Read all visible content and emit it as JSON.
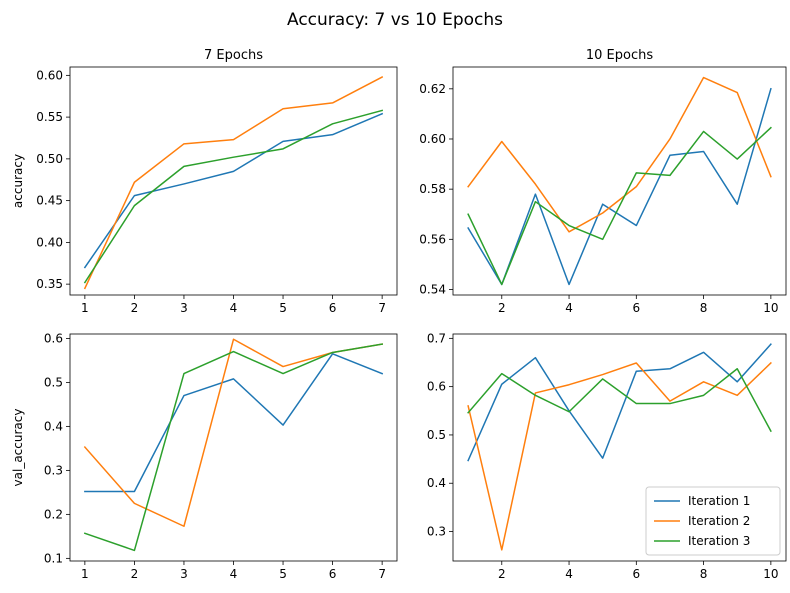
{
  "suptitle": "Accuracy: 7 vs 10 Epochs",
  "series_colors": [
    "#1f77b4",
    "#ff7f0e",
    "#2ca02c"
  ],
  "chart_data": [
    {
      "type": "line",
      "title": "7 Epochs",
      "xlabel": "",
      "ylabel": "accuracy",
      "x": [
        1,
        2,
        3,
        4,
        5,
        6,
        7
      ],
      "xticks": [
        1,
        2,
        3,
        4,
        5,
        6,
        7
      ],
      "ylim": [
        0.337,
        0.61
      ],
      "yticks": [
        0.35,
        0.4,
        0.45,
        0.5,
        0.55,
        0.6
      ],
      "ytick_labels": [
        "0.35",
        "0.40",
        "0.45",
        "0.50",
        "0.55",
        "0.60"
      ],
      "series": [
        {
          "name": "Iteration 1",
          "values": [
            0.37,
            0.456,
            0.47,
            0.485,
            0.521,
            0.529,
            0.554
          ]
        },
        {
          "name": "Iteration 2",
          "values": [
            0.345,
            0.472,
            0.518,
            0.523,
            0.56,
            0.567,
            0.598
          ]
        },
        {
          "name": "Iteration 3",
          "values": [
            0.352,
            0.444,
            0.491,
            0.502,
            0.512,
            0.542,
            0.558
          ]
        }
      ]
    },
    {
      "type": "line",
      "title": "10 Epochs",
      "xlabel": "",
      "ylabel": "",
      "x": [
        1,
        2,
        3,
        4,
        5,
        6,
        7,
        8,
        9,
        10
      ],
      "xticks": [
        2,
        4,
        6,
        8,
        10
      ],
      "ylim": [
        0.5378,
        0.6287
      ],
      "yticks": [
        0.54,
        0.56,
        0.58,
        0.6,
        0.62
      ],
      "ytick_labels": [
        "0.54",
        "0.56",
        "0.58",
        "0.60",
        "0.62"
      ],
      "series": [
        {
          "name": "Iteration 1",
          "values": [
            0.5645,
            0.542,
            0.578,
            0.542,
            0.574,
            0.5655,
            0.5935,
            0.595,
            0.574,
            0.62
          ]
        },
        {
          "name": "Iteration 2",
          "values": [
            0.581,
            0.599,
            0.582,
            0.563,
            0.5705,
            0.581,
            0.6,
            0.6245,
            0.6185,
            0.585
          ]
        },
        {
          "name": "Iteration 3",
          "values": [
            0.57,
            0.542,
            0.575,
            0.5655,
            0.56,
            0.5865,
            0.5855,
            0.603,
            0.592,
            0.6045
          ]
        }
      ]
    },
    {
      "type": "line",
      "title": "",
      "xlabel": "",
      "ylabel": "val_accuracy",
      "x": [
        1,
        2,
        3,
        4,
        5,
        6,
        7
      ],
      "xticks": [
        1,
        2,
        3,
        4,
        5,
        6,
        7
      ],
      "ylim": [
        0.094,
        0.61
      ],
      "yticks": [
        0.1,
        0.2,
        0.3,
        0.4,
        0.5,
        0.6
      ],
      "ytick_labels": [
        "0.1",
        "0.2",
        "0.3",
        "0.4",
        "0.5",
        "0.6"
      ],
      "series": [
        {
          "name": "Iteration 1",
          "values": [
            0.252,
            0.252,
            0.47,
            0.508,
            0.403,
            0.565,
            0.52
          ]
        },
        {
          "name": "Iteration 2",
          "values": [
            0.353,
            0.225,
            0.173,
            0.598,
            0.536,
            0.568,
            0.587
          ]
        },
        {
          "name": "Iteration 3",
          "values": [
            0.157,
            0.118,
            0.52,
            0.57,
            0.52,
            0.568,
            0.587
          ]
        }
      ]
    },
    {
      "type": "line",
      "title": "",
      "xlabel": "",
      "ylabel": "",
      "x": [
        1,
        2,
        3,
        4,
        5,
        6,
        7,
        8,
        9,
        10
      ],
      "xticks": [
        2,
        4,
        6,
        8,
        10
      ],
      "ylim": [
        0.239,
        0.709
      ],
      "yticks": [
        0.3,
        0.4,
        0.5,
        0.6,
        0.7
      ],
      "ytick_labels": [
        "0.3",
        "0.4",
        "0.5",
        "0.6",
        "0.7"
      ],
      "legend": "lower right",
      "series": [
        {
          "name": "Iteration 1",
          "values": [
            0.447,
            0.605,
            0.66,
            0.55,
            0.452,
            0.632,
            0.637,
            0.671,
            0.61,
            0.688
          ]
        },
        {
          "name": "Iteration 2",
          "values": [
            0.56,
            0.262,
            0.587,
            0.604,
            0.625,
            0.649,
            0.57,
            0.61,
            0.582,
            0.649
          ]
        },
        {
          "name": "Iteration 3",
          "values": [
            0.546,
            0.627,
            0.582,
            0.548,
            0.616,
            0.565,
            0.565,
            0.582,
            0.637,
            0.508
          ]
        }
      ]
    }
  ]
}
